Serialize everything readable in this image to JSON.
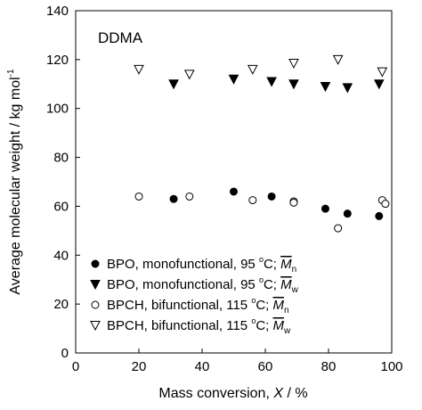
{
  "chart_data": {
    "type": "scatter",
    "annotation": "DDMA",
    "xlabel": {
      "main": "Mass conversion, ",
      "var": "X",
      "tail": " / %"
    },
    "ylabel": {
      "main": "Average molecular weight / kg mol",
      "sup": "-1"
    },
    "xlim": [
      0,
      100
    ],
    "ylim": [
      0,
      140
    ],
    "xticks": [
      0,
      20,
      40,
      60,
      80,
      100
    ],
    "yticks": [
      0,
      20,
      40,
      60,
      80,
      100,
      120,
      140
    ],
    "grid": false,
    "legend_position": "bottom-left",
    "series": [
      {
        "marker": "circle-filled",
        "legend": {
          "text": "BPO, monofunctional, 95 ",
          "deg": "o",
          "unit": "C; ",
          "sym": "M",
          "sub": "n"
        },
        "points": [
          [
            31,
            63
          ],
          [
            50,
            66
          ],
          [
            62,
            64
          ],
          [
            79,
            59
          ],
          [
            86,
            57
          ],
          [
            96,
            56
          ]
        ]
      },
      {
        "marker": "triangle-down-filled",
        "legend": {
          "text": "BPO, monofunctional, 95 ",
          "deg": "o",
          "unit": "C; ",
          "sym": "M",
          "sub": "w"
        },
        "points": [
          [
            31,
            110
          ],
          [
            50,
            112
          ],
          [
            62,
            111
          ],
          [
            69,
            110
          ],
          [
            79,
            109
          ],
          [
            86,
            108.5
          ],
          [
            96,
            110
          ]
        ]
      },
      {
        "marker": "circle-open",
        "legend": {
          "text": "BPCH, bifunctional, 115 ",
          "deg": "o",
          "unit": "C; ",
          "sym": "M",
          "sub": "n"
        },
        "points": [
          [
            20,
            64
          ],
          [
            36,
            64
          ],
          [
            56,
            62.5
          ],
          [
            69,
            62
          ],
          [
            69,
            61.5
          ],
          [
            83,
            51
          ],
          [
            97,
            62.5
          ],
          [
            98,
            61
          ]
        ]
      },
      {
        "marker": "triangle-down-open",
        "legend": {
          "text": "BPCH, bifunctional, 115 ",
          "deg": "o",
          "unit": "C; ",
          "sym": "M",
          "sub": "w"
        },
        "points": [
          [
            20,
            116
          ],
          [
            36,
            114
          ],
          [
            56,
            116
          ],
          [
            69,
            118.5
          ],
          [
            83,
            120
          ],
          [
            97,
            115
          ]
        ]
      }
    ]
  }
}
